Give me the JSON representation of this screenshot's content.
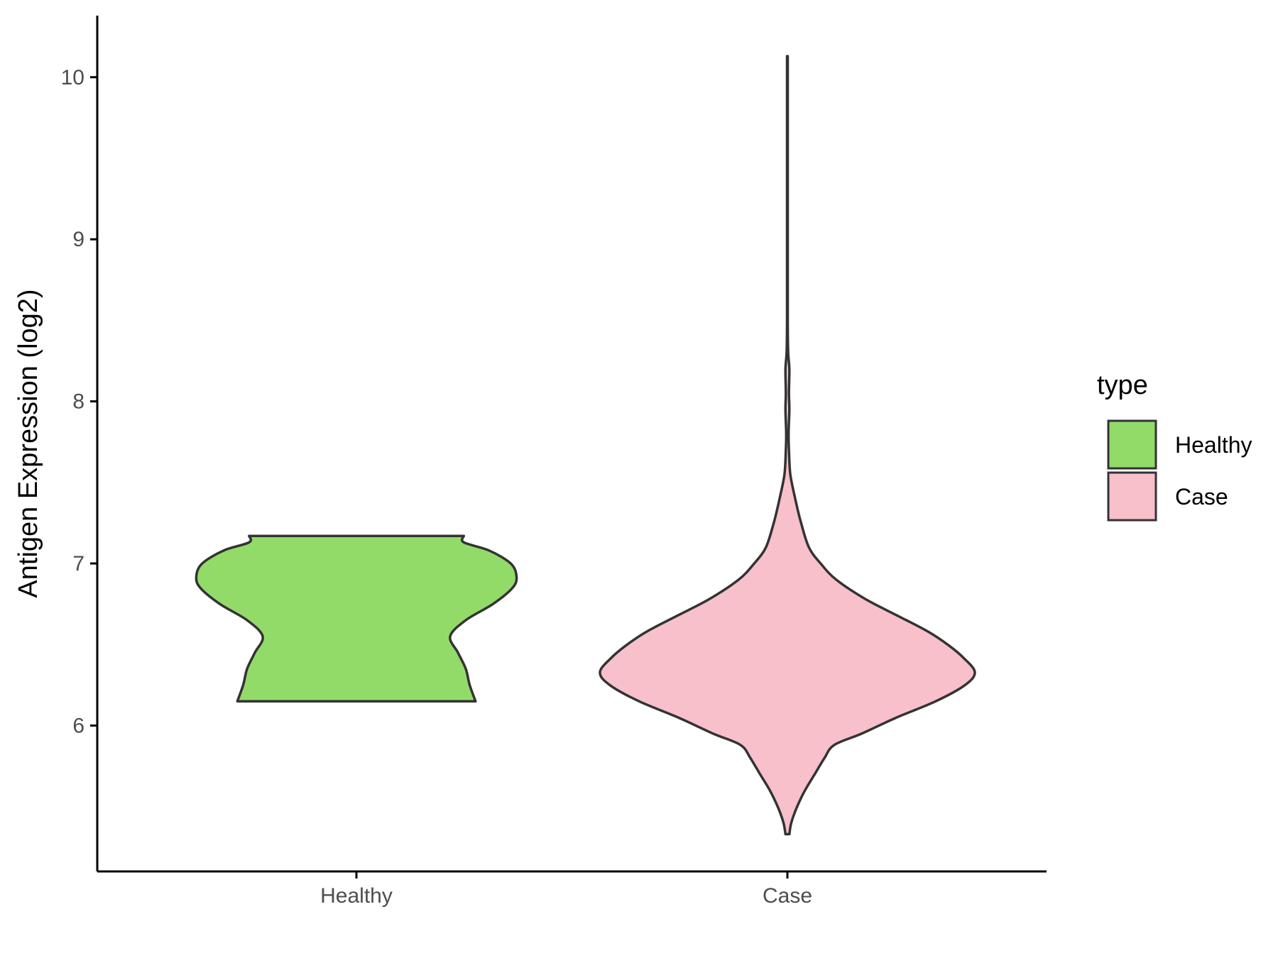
{
  "chart_data": {
    "type": "violin",
    "ylabel": "Antigen Expression (log2)",
    "xlabel": "",
    "ylim": [
      5.1,
      10.38
    ],
    "yticks": [
      6,
      7,
      8,
      9,
      10
    ],
    "categories": [
      "Healthy",
      "Case"
    ],
    "grid": false,
    "legend": {
      "title": "type",
      "placement": "right",
      "entries": [
        {
          "label": "Healthy",
          "color": "#93DB69"
        },
        {
          "label": "Case",
          "color": "#F8C0CB"
        }
      ]
    },
    "series": [
      {
        "category": "Healthy",
        "color": "#93DB69",
        "min": 6.15,
        "max": 7.17,
        "density_profile": [
          [
            6.15,
            0.61
          ],
          [
            6.25,
            0.58
          ],
          [
            6.35,
            0.56
          ],
          [
            6.45,
            0.52
          ],
          [
            6.55,
            0.48
          ],
          [
            6.65,
            0.56
          ],
          [
            6.75,
            0.7
          ],
          [
            6.85,
            0.8
          ],
          [
            6.92,
            0.82
          ],
          [
            7.0,
            0.79
          ],
          [
            7.08,
            0.68
          ],
          [
            7.13,
            0.55
          ],
          [
            7.17,
            0.55
          ]
        ]
      },
      {
        "category": "Case",
        "color": "#F8C0CB",
        "min": 5.33,
        "max": 10.13,
        "density_profile": [
          [
            5.33,
            0.01
          ],
          [
            5.4,
            0.02
          ],
          [
            5.5,
            0.05
          ],
          [
            5.6,
            0.09
          ],
          [
            5.7,
            0.14
          ],
          [
            5.8,
            0.19
          ],
          [
            5.88,
            0.24
          ],
          [
            5.95,
            0.38
          ],
          [
            6.05,
            0.56
          ],
          [
            6.15,
            0.76
          ],
          [
            6.25,
            0.91
          ],
          [
            6.33,
            0.96
          ],
          [
            6.42,
            0.9
          ],
          [
            6.5,
            0.82
          ],
          [
            6.58,
            0.72
          ],
          [
            6.68,
            0.56
          ],
          [
            6.78,
            0.4
          ],
          [
            6.9,
            0.25
          ],
          [
            7.0,
            0.17
          ],
          [
            7.1,
            0.11
          ],
          [
            7.25,
            0.07
          ],
          [
            7.4,
            0.04
          ],
          [
            7.55,
            0.015
          ],
          [
            7.7,
            0.008
          ],
          [
            7.8,
            0.006
          ],
          [
            7.95,
            0.01
          ],
          [
            8.05,
            0.008
          ],
          [
            8.2,
            0.01
          ],
          [
            8.3,
            0.004
          ],
          [
            8.5,
            0.002
          ],
          [
            9.0,
            0.002
          ],
          [
            9.5,
            0.002
          ],
          [
            10.0,
            0.002
          ],
          [
            10.13,
            0.002
          ]
        ]
      }
    ]
  }
}
